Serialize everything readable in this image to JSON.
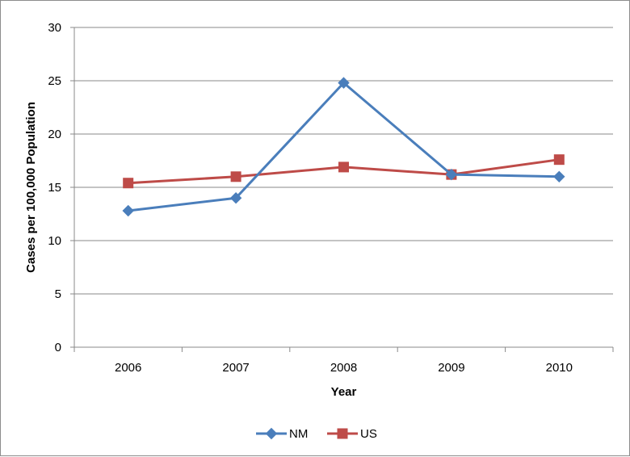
{
  "chart_data": {
    "type": "line",
    "title": "",
    "xlabel": "Year",
    "ylabel": "Cases per 100,000 Population",
    "categories": [
      "2006",
      "2007",
      "2008",
      "2009",
      "2010"
    ],
    "ylim": [
      0,
      30
    ],
    "yticks": [
      0,
      5,
      10,
      15,
      20,
      25,
      30
    ],
    "grid": true,
    "legend_position": "bottom",
    "series": [
      {
        "name": "NM",
        "values": [
          12.8,
          14.0,
          24.8,
          16.2,
          16.0
        ],
        "color": "#4a7ebb",
        "marker": "diamond"
      },
      {
        "name": "US",
        "values": [
          15.4,
          16.0,
          16.9,
          16.2,
          17.6
        ],
        "color": "#be4b48",
        "marker": "square"
      }
    ]
  }
}
